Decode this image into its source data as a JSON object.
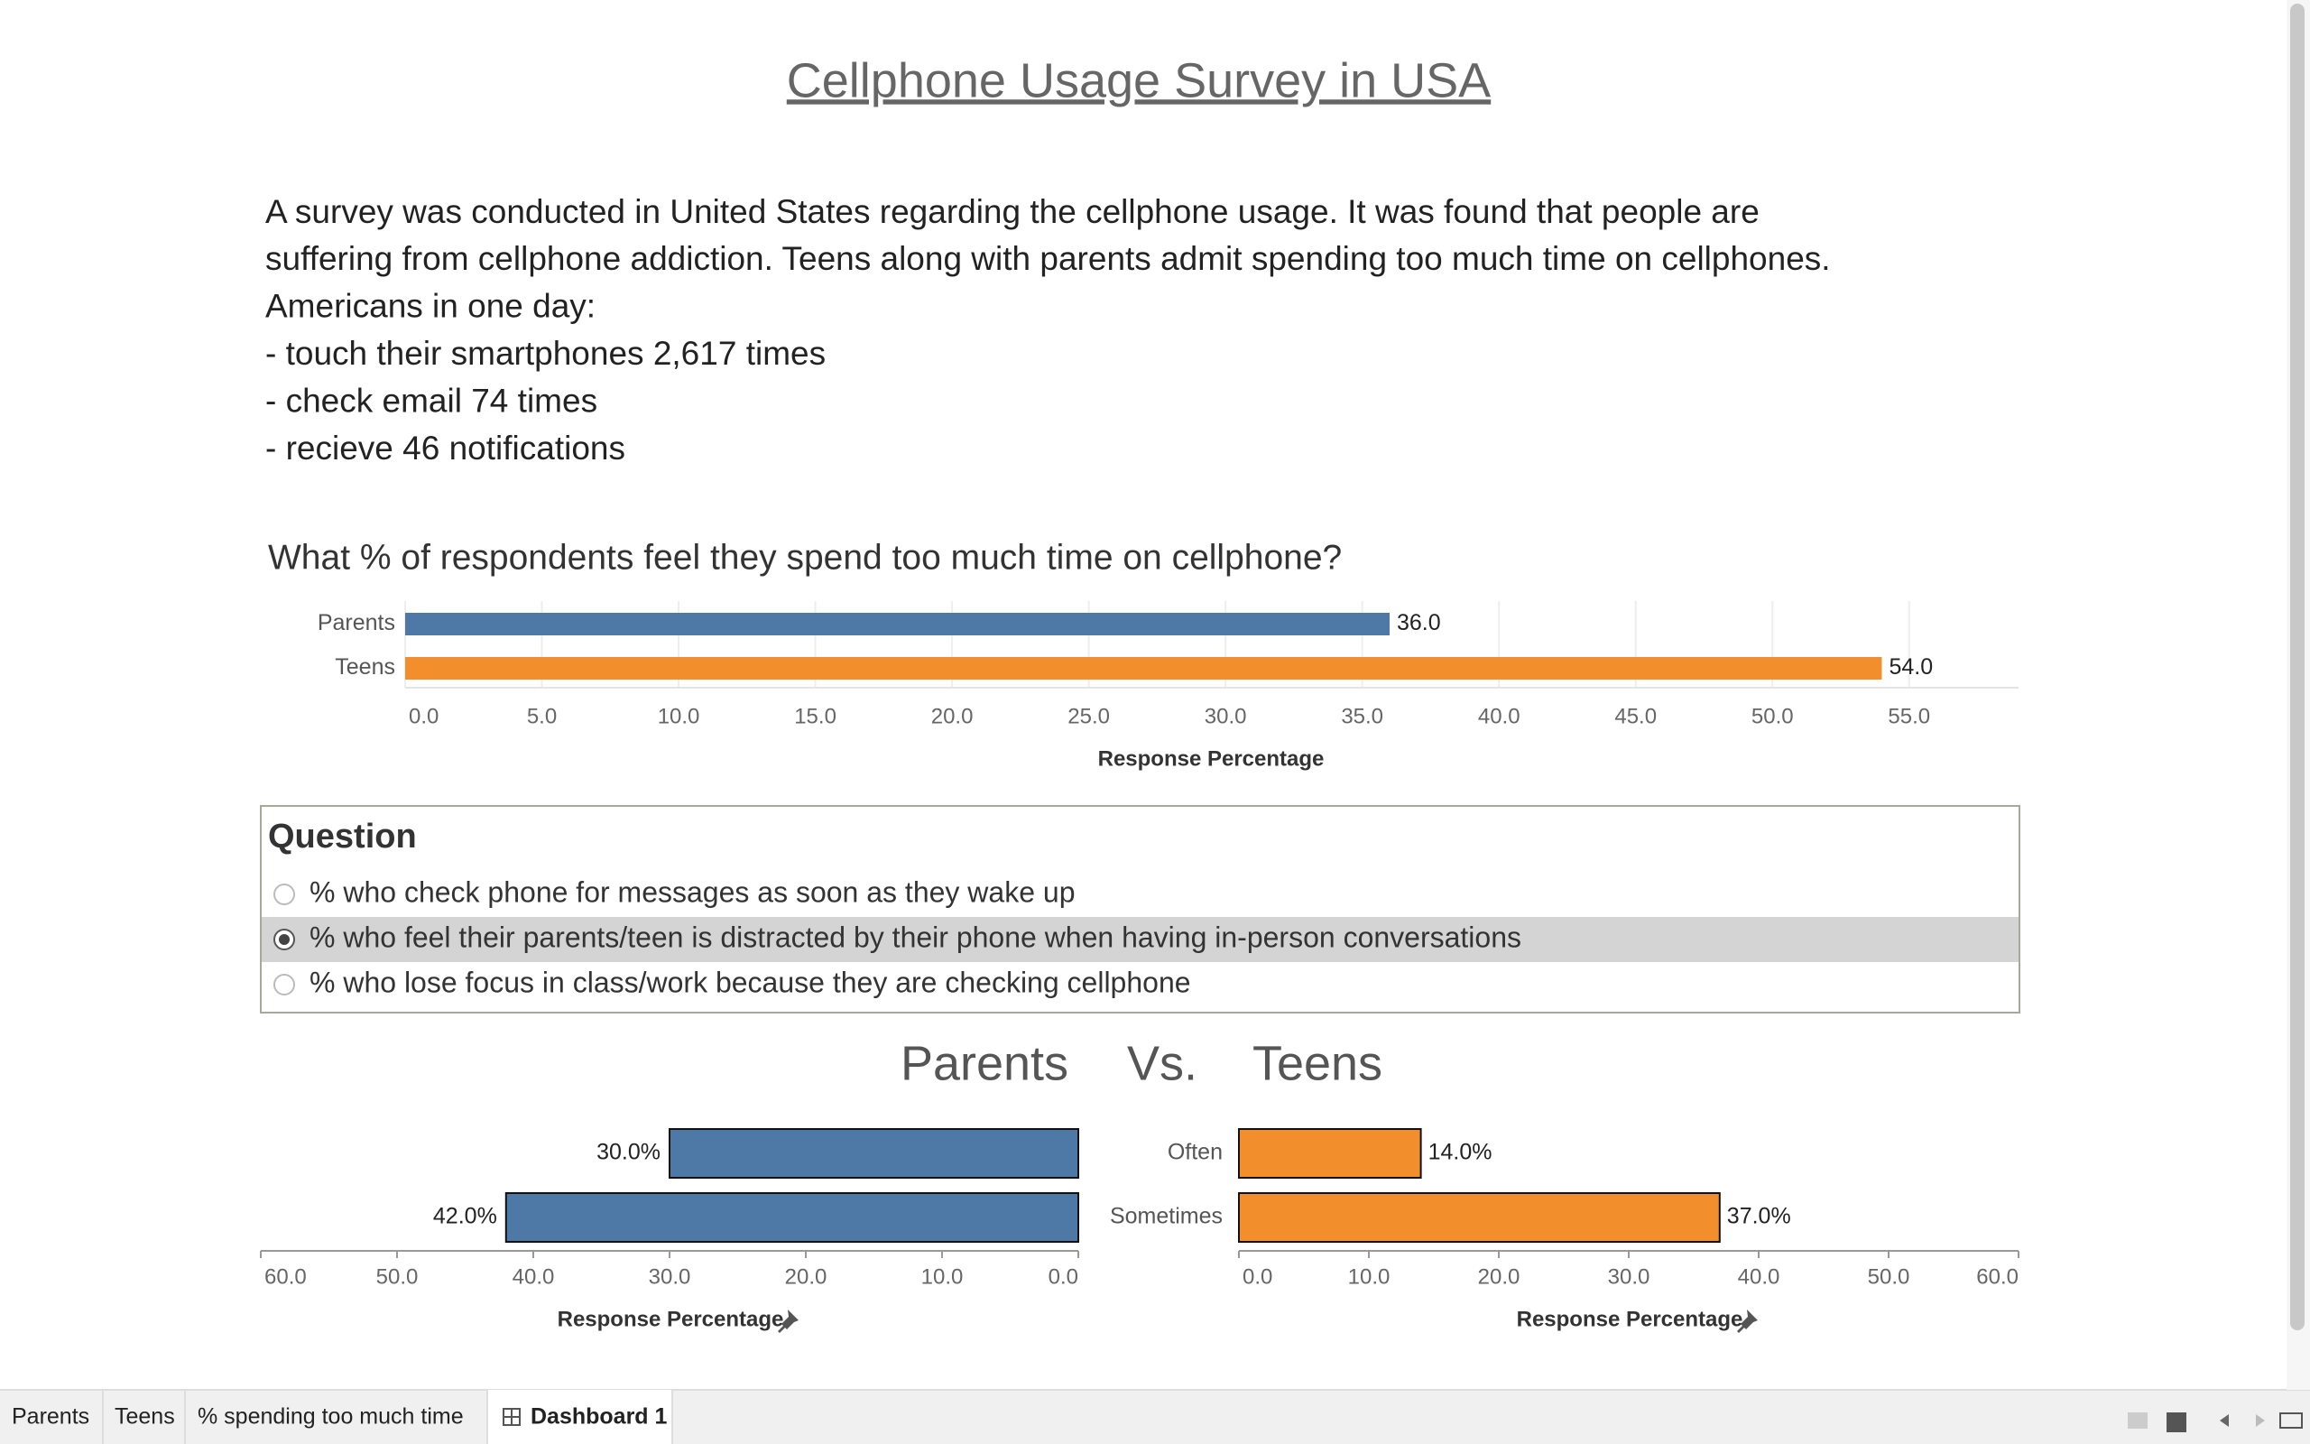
{
  "title": "Cellphone Usage Survey in USA",
  "description": [
    "A survey was conducted in United States regarding the cellphone usage. It was found that people are",
    "suffering from cellphone addiction. Teens along with parents admit spending too much time on cellphones.",
    "Americans in one day:",
    "- touch their smartphones 2,617 times",
    "- check email 74 times",
    "- recieve 46 notifications"
  ],
  "chart_data": [
    {
      "type": "bar",
      "orientation": "horizontal",
      "title": "What % of respondents feel they spend too much time on cellphone?",
      "categories": [
        "Parents",
        "Teens"
      ],
      "values": [
        36,
        54
      ],
      "value_labels": [
        "36.0",
        "54.0"
      ],
      "colors": [
        "#4e79a7",
        "#f28e2b"
      ],
      "xlabel": "Response Percentage",
      "xlim": [
        0,
        59
      ],
      "grid": true,
      "xticks": [
        {
          "value": 0,
          "label": "0.0"
        },
        {
          "value": 5,
          "label": "5.0"
        },
        {
          "value": 10,
          "label": "10.0"
        },
        {
          "value": 15,
          "label": "15.0"
        },
        {
          "value": 20,
          "label": "20.0"
        },
        {
          "value": 25,
          "label": "25.0"
        },
        {
          "value": 30,
          "label": "30.0"
        },
        {
          "value": 35,
          "label": "35.0"
        },
        {
          "value": 40,
          "label": "40.0"
        },
        {
          "value": 45,
          "label": "45.0"
        },
        {
          "value": 50,
          "label": "50.0"
        },
        {
          "value": 55,
          "label": "55.0"
        }
      ]
    },
    {
      "type": "bar",
      "orientation": "horizontal",
      "title": "Parents",
      "values": [
        30,
        42
      ],
      "value_labels": [
        "30.0%",
        "42.0%"
      ],
      "color": "#4e79a7",
      "xlabel": "Response Percentage",
      "xlim": [
        0,
        60
      ],
      "reversed": true,
      "xticks": [
        {
          "value": 0,
          "label": "0.0"
        },
        {
          "value": 10,
          "label": "10.0"
        },
        {
          "value": 20,
          "label": "20.0"
        },
        {
          "value": 30,
          "label": "30.0"
        },
        {
          "value": 40,
          "label": "40.0"
        },
        {
          "value": 50,
          "label": "50.0"
        },
        {
          "value": 60,
          "label": "60.0"
        }
      ]
    },
    {
      "type": "bar",
      "orientation": "horizontal",
      "title": "Teens",
      "categories": [
        "Often",
        "Sometimes"
      ],
      "values": [
        14,
        37
      ],
      "value_labels": [
        "14.0%",
        "37.0%"
      ],
      "color": "#f28e2b",
      "xlabel": "Response Percentage",
      "xlim": [
        0,
        60
      ],
      "xticks": [
        {
          "value": 0,
          "label": "0.0"
        },
        {
          "value": 10,
          "label": "10.0"
        },
        {
          "value": 20,
          "label": "20.0"
        },
        {
          "value": 30,
          "label": "30.0"
        },
        {
          "value": 40,
          "label": "40.0"
        },
        {
          "value": 50,
          "label": "50.0"
        },
        {
          "value": 60,
          "label": "60.0"
        }
      ]
    }
  ],
  "versus": "Vs.",
  "filter": {
    "title": "Question",
    "selected": 1,
    "options": [
      "% who check phone for messages as soon as they wake up",
      "% who feel their parents/teen is distracted by their phone when having in-person conversations",
      "% who lose focus in class/work because they are checking cellphone"
    ]
  },
  "tabs": {
    "active": 3,
    "items": [
      "Parents",
      "Teens",
      "% spending too much time",
      "Dashboard 1"
    ]
  }
}
